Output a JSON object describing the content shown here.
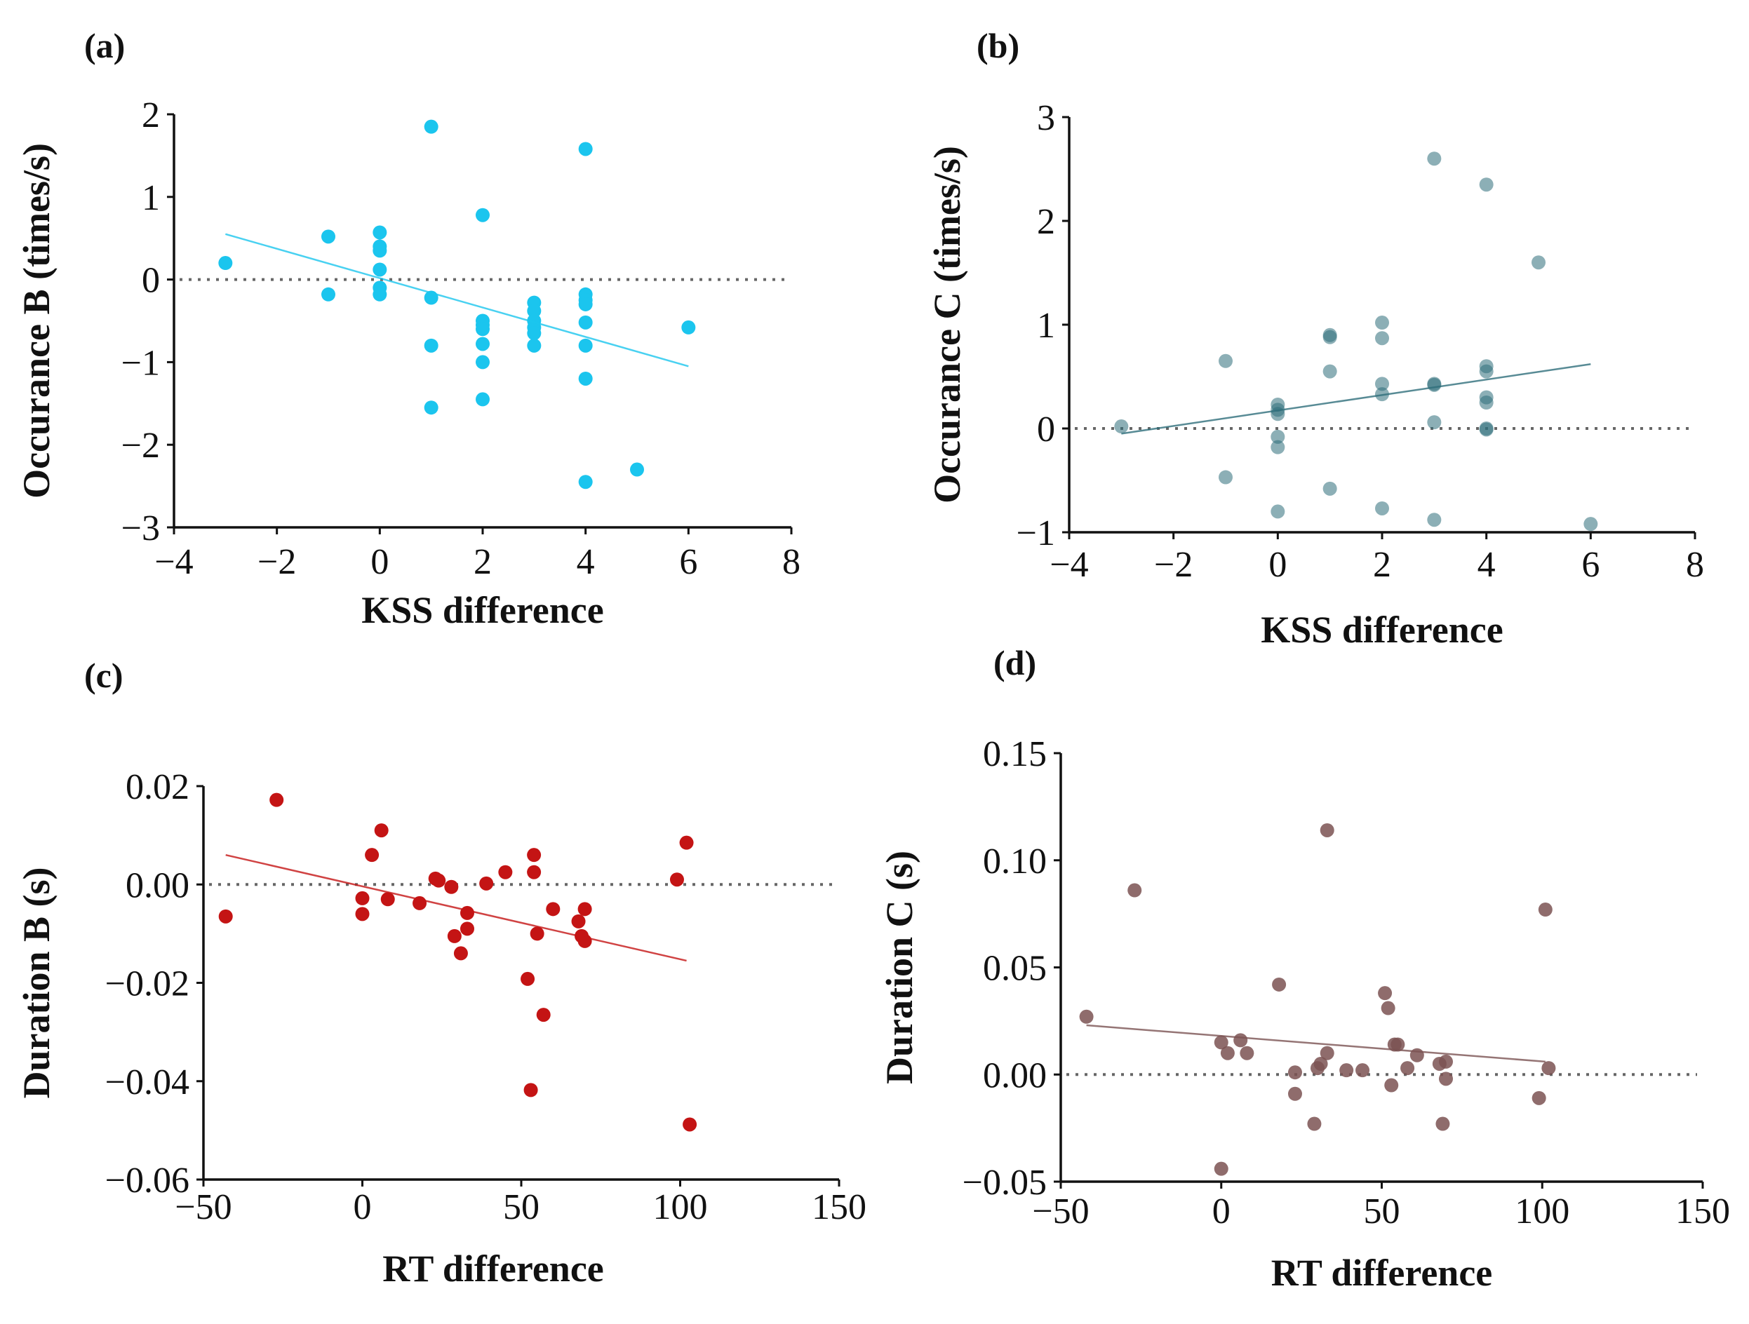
{
  "figure": {
    "panels": [
      "(a)",
      "(b)",
      "(c)",
      "(d)"
    ]
  },
  "chart_data": [
    {
      "type": "scatter",
      "panel_label": "(a)",
      "xlabel": "KSS difference",
      "ylabel": "Occurance B (times/s)",
      "xlim": [
        -4,
        8
      ],
      "ylim": [
        -3,
        2
      ],
      "xticks": [
        -4,
        -2,
        0,
        2,
        4,
        6,
        8
      ],
      "xtick_labels": [
        "−4",
        "−2",
        "0",
        "2",
        "4",
        "6",
        "8"
      ],
      "yticks": [
        -3,
        -2,
        -1,
        0,
        1,
        2
      ],
      "ytick_labels": [
        "−3",
        "−2",
        "−1",
        "0",
        "1",
        "2"
      ],
      "color": "#1BC5EE",
      "fit_line": {
        "x": [
          -3,
          6
        ],
        "y": [
          0.55,
          -1.05
        ]
      },
      "reference_line_y": 0,
      "points": {
        "x": [
          -3,
          -1,
          -1,
          0,
          0,
          0,
          0,
          0,
          0,
          1,
          1,
          1,
          1,
          2,
          2,
          2,
          2,
          2,
          2,
          2,
          3,
          3,
          3,
          3,
          3,
          3,
          4,
          4,
          4,
          4,
          4,
          4,
          4,
          4,
          5,
          6
        ],
        "y": [
          0.2,
          0.52,
          -0.18,
          0.57,
          0.4,
          0.35,
          0.12,
          -0.1,
          -0.18,
          1.85,
          -0.22,
          -0.8,
          -1.55,
          0.78,
          -0.5,
          -0.55,
          -0.6,
          -1.0,
          -1.45,
          -0.78,
          -0.28,
          -0.38,
          -0.5,
          -0.58,
          -0.65,
          -0.8,
          1.58,
          -0.18,
          -0.25,
          -0.3,
          -0.52,
          -0.8,
          -1.2,
          -2.45,
          -2.3,
          -0.58
        ]
      }
    },
    {
      "type": "scatter",
      "panel_label": "(b)",
      "xlabel": "KSS difference",
      "ylabel": "Occurance C (times/s)",
      "xlim": [
        -4,
        8
      ],
      "ylim": [
        -1,
        3
      ],
      "xticks": [
        -4,
        -2,
        0,
        2,
        4,
        6,
        8
      ],
      "xtick_labels": [
        "−4",
        "−2",
        "0",
        "2",
        "4",
        "6",
        "8"
      ],
      "yticks": [
        -1,
        0,
        1,
        2,
        3
      ],
      "ytick_labels": [
        "−1",
        "0",
        "1",
        "2",
        "3"
      ],
      "color": "#2E6E7A",
      "fit_line": {
        "x": [
          -3,
          6
        ],
        "y": [
          -0.05,
          0.62
        ]
      },
      "reference_line_y": 0,
      "points": {
        "x": [
          -3,
          -1,
          -1,
          0,
          0,
          0,
          0,
          0,
          0,
          1,
          1,
          1,
          1,
          2,
          2,
          2,
          2,
          2,
          3,
          3,
          3,
          3,
          3,
          4,
          4,
          4,
          4,
          4,
          4,
          4,
          5,
          6
        ],
        "y": [
          0.02,
          0.65,
          -0.47,
          0.23,
          0.18,
          0.14,
          -0.08,
          -0.18,
          -0.8,
          0.9,
          0.88,
          0.55,
          -0.58,
          1.02,
          0.87,
          0.43,
          0.33,
          -0.77,
          2.6,
          0.43,
          0.42,
          0.06,
          -0.88,
          2.35,
          0.6,
          0.55,
          0.3,
          0.25,
          0.0,
          -0.01,
          1.6,
          -0.92
        ]
      }
    },
    {
      "type": "scatter",
      "panel_label": "(c)",
      "xlabel": "RT difference",
      "ylabel": "Duration B (s)",
      "xlim": [
        -50,
        150
      ],
      "ylim": [
        -0.06,
        0.02
      ],
      "xticks": [
        -50,
        0,
        50,
        100,
        150
      ],
      "xtick_labels": [
        "−50",
        "0",
        "50",
        "100",
        "150"
      ],
      "yticks": [
        -0.06,
        -0.04,
        -0.02,
        0,
        0.02
      ],
      "ytick_labels": [
        "−0.06",
        "−0.04",
        "−0.02",
        "0.00",
        "0.02"
      ],
      "color": "#C41414",
      "fit_line": {
        "x": [
          -43,
          102
        ],
        "y": [
          0.006,
          -0.0155
        ]
      },
      "reference_line_y": 0,
      "points": {
        "x": [
          -43,
          -27,
          0,
          0,
          3,
          6,
          8,
          18,
          23,
          24,
          28,
          29,
          31,
          33,
          33,
          39,
          45,
          52,
          53,
          54,
          54,
          55,
          57,
          60,
          68,
          69,
          70,
          70,
          99,
          102,
          103
        ],
        "y": [
          -0.0065,
          0.0172,
          -0.0028,
          -0.006,
          0.006,
          0.011,
          -0.003,
          -0.0038,
          0.0012,
          0.0008,
          -0.0005,
          -0.0105,
          -0.014,
          -0.009,
          -0.0058,
          0.0002,
          0.0025,
          -0.0192,
          -0.0418,
          0.006,
          0.0025,
          -0.01,
          -0.0265,
          -0.005,
          -0.0075,
          -0.0105,
          -0.0115,
          -0.005,
          0.001,
          0.0085,
          -0.0488
        ]
      }
    },
    {
      "type": "scatter",
      "panel_label": "(d)",
      "xlabel": "RT difference",
      "ylabel": "Duration C (s)",
      "xlim": [
        -50,
        150
      ],
      "ylim": [
        -0.05,
        0.15
      ],
      "xticks": [
        -50,
        0,
        50,
        100,
        150
      ],
      "xtick_labels": [
        "−50",
        "0",
        "50",
        "100",
        "150"
      ],
      "yticks": [
        -0.05,
        0,
        0.05,
        0.1,
        0.15
      ],
      "ytick_labels": [
        "−0.05",
        "0.00",
        "0.05",
        "0.10",
        "0.15"
      ],
      "color": "#7B5252",
      "fit_line": {
        "x": [
          -42,
          101
        ],
        "y": [
          0.023,
          0.006
        ]
      },
      "reference_line_y": 0,
      "points": {
        "x": [
          -42,
          -27,
          0,
          0,
          2,
          6,
          8,
          18,
          23,
          23,
          29,
          30,
          31,
          33,
          33,
          39,
          44,
          51,
          52,
          53,
          54,
          55,
          58,
          61,
          68,
          69,
          70,
          70,
          99,
          101,
          102
        ],
        "y": [
          0.027,
          0.086,
          -0.044,
          0.015,
          0.01,
          0.016,
          0.01,
          0.042,
          -0.009,
          0.001,
          -0.023,
          0.003,
          0.005,
          0.114,
          0.01,
          0.002,
          0.002,
          0.038,
          0.031,
          -0.005,
          0.014,
          0.014,
          0.003,
          0.009,
          0.005,
          -0.023,
          0.006,
          -0.002,
          -0.011,
          0.077,
          0.003
        ]
      }
    }
  ]
}
